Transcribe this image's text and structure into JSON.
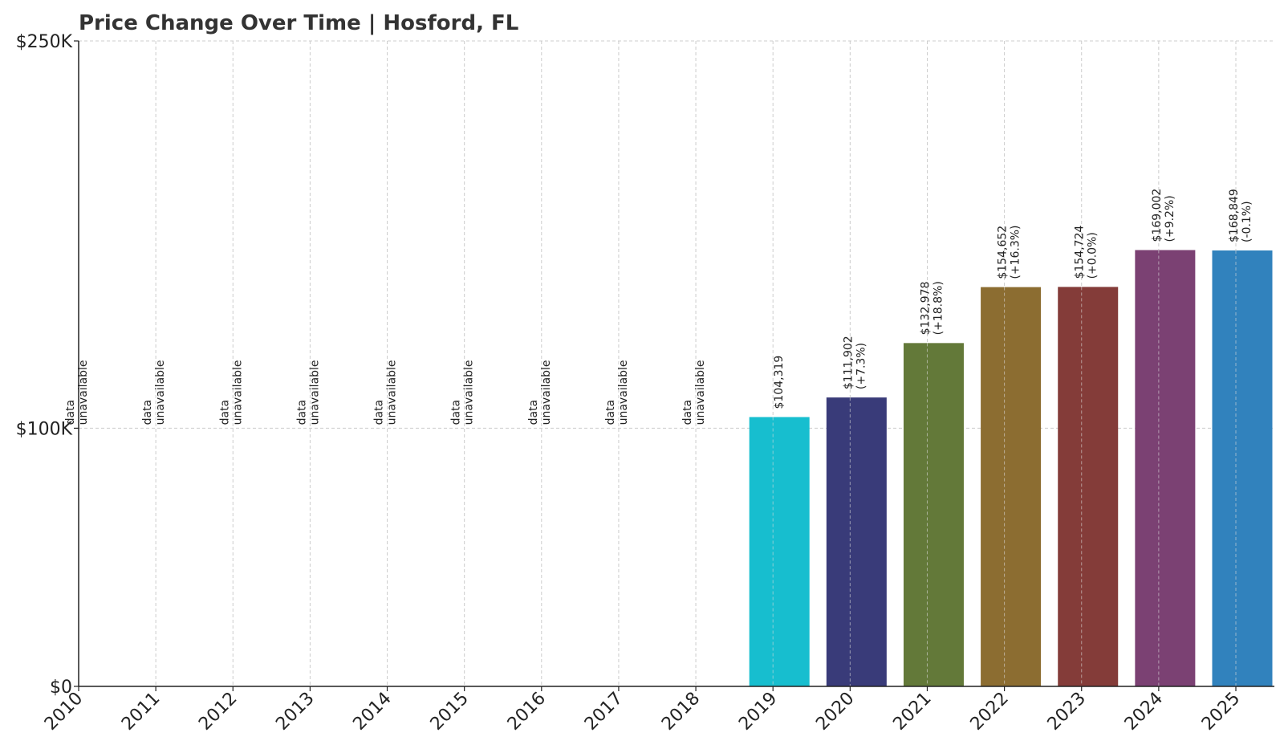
{
  "chart_data": {
    "type": "bar",
    "title": "Price Change Over Time | Hosford, FL",
    "xlabel": "",
    "ylabel": "",
    "categories": [
      "2010",
      "2011",
      "2012",
      "2013",
      "2014",
      "2015",
      "2016",
      "2017",
      "2018",
      "2019",
      "2020",
      "2021",
      "2022",
      "2023",
      "2024",
      "2025"
    ],
    "values": [
      null,
      null,
      null,
      null,
      null,
      null,
      null,
      null,
      null,
      104319,
      111902,
      132978,
      154652,
      154724,
      169002,
      168849
    ],
    "value_labels": [
      "",
      "",
      "",
      "",
      "",
      "",
      "",
      "",
      "",
      "$104,319",
      "$111,902",
      "$132,978",
      "$154,652",
      "$154,724",
      "$169,002",
      "$168,849"
    ],
    "change_labels": [
      "",
      "",
      "",
      "",
      "",
      "",
      "",
      "",
      "",
      "",
      "(+7.3%)",
      "(+18.8%)",
      "(+16.3%)",
      "(+0.0%)",
      "(+9.2%)",
      "(-0.1%)"
    ],
    "unavailable_text": [
      "data",
      "unavailable"
    ],
    "bar_colors": [
      "#17becf",
      "#17becf",
      "#17becf",
      "#17becf",
      "#17becf",
      "#17becf",
      "#17becf",
      "#17becf",
      "#17becf",
      "#17becf",
      "#393b79",
      "#637939",
      "#8c6d31",
      "#843c39",
      "#7b4173",
      "#3182bd"
    ],
    "ylim": [
      0,
      250000
    ],
    "yticks": [
      0,
      100000,
      250000
    ],
    "ytick_labels": [
      "$0",
      "$100K",
      "$250K"
    ],
    "grid": true
  }
}
